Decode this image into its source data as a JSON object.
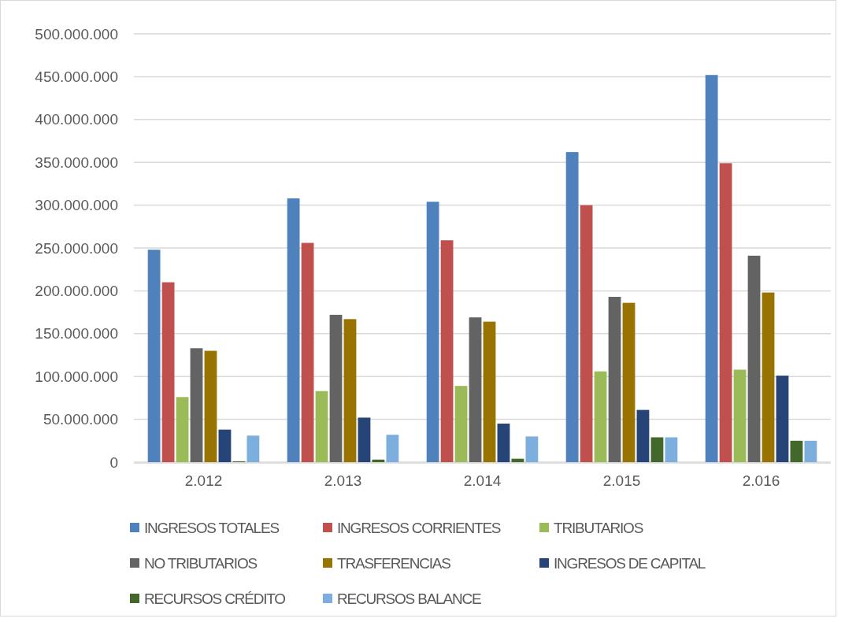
{
  "chart_data": {
    "type": "bar",
    "categories": [
      "2.012",
      "2.013",
      "2.014",
      "2.015",
      "2.016"
    ],
    "series": [
      {
        "name": "INGRESOS TOTALES",
        "color": "#4f81bd",
        "values": [
          248000000,
          308000000,
          304000000,
          362000000,
          452000000
        ]
      },
      {
        "name": "INGRESOS CORRIENTES",
        "color": "#c0504d",
        "values": [
          210000000,
          256000000,
          259000000,
          300000000,
          349000000
        ]
      },
      {
        "name": "TRIBUTARIOS",
        "color": "#9bbb59",
        "values": [
          76000000,
          83000000,
          89000000,
          106000000,
          108000000
        ]
      },
      {
        "name": "NO TRIBUTARIOS",
        "color": "#636363",
        "values": [
          133000000,
          172000000,
          169000000,
          193000000,
          241000000
        ]
      },
      {
        "name": "TRASFERENCIAS",
        "color": "#997300",
        "values": [
          130000000,
          167000000,
          164000000,
          186000000,
          198000000
        ]
      },
      {
        "name": "INGRESOS DE CAPITAL",
        "color": "#264478",
        "values": [
          38000000,
          52000000,
          45000000,
          61000000,
          101000000
        ]
      },
      {
        "name": "RECURSOS CRÉDITO",
        "color": "#43682b",
        "values": [
          1000000,
          3000000,
          4000000,
          29000000,
          25000000
        ]
      },
      {
        "name": "RECURSOS BALANCE",
        "color": "#7cafdd",
        "values": [
          31000000,
          32000000,
          30000000,
          29000000,
          25000000
        ]
      }
    ],
    "ylim": [
      0,
      500000000
    ],
    "yticks": [
      0,
      {
        "value": 50000000,
        "label": "50.000.000"
      },
      {
        "value": 100000000,
        "label": "100.000.000"
      },
      {
        "value": 150000000,
        "label": "150.000.000"
      },
      {
        "value": 200000000,
        "label": "200.000.000"
      },
      {
        "value": 250000000,
        "label": "250.000.000"
      },
      {
        "value": 300000000,
        "label": "300.000.000"
      },
      {
        "value": 350000000,
        "label": "350.000.000"
      },
      {
        "value": 400000000,
        "label": "400.000.000"
      },
      {
        "value": 450000000,
        "label": "450.000.000"
      },
      {
        "value": 500000000,
        "label": "500.000.000"
      }
    ],
    "grid": "y",
    "legend": "bottom"
  }
}
